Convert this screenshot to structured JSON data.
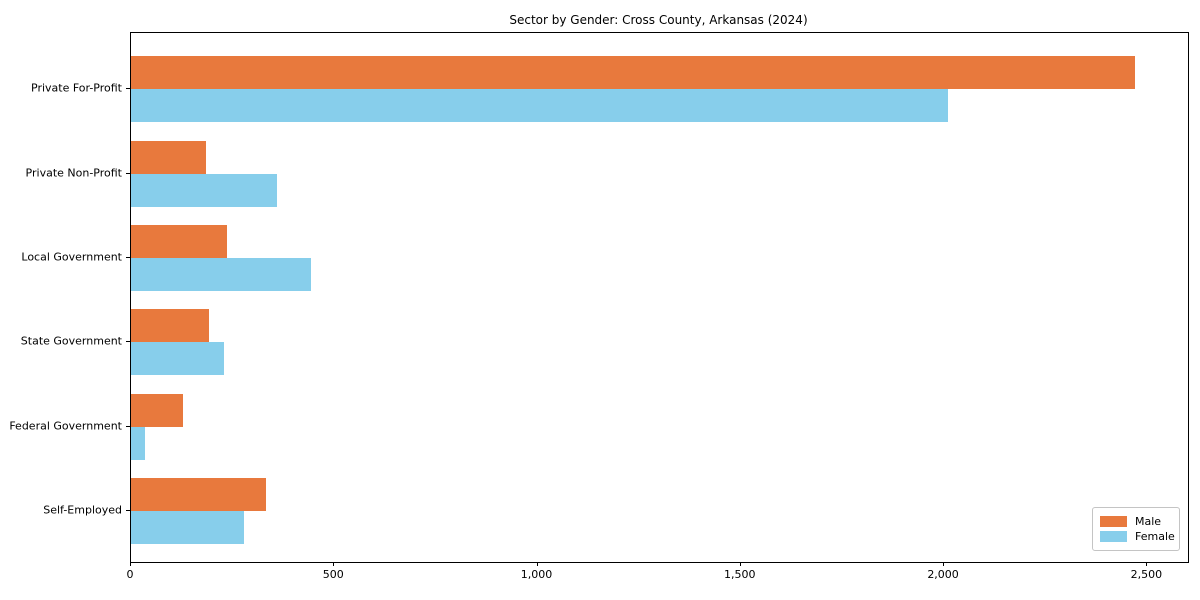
{
  "chart_data": {
    "type": "bar",
    "orientation": "horizontal",
    "title": "Sector by Gender: Cross County, Arkansas (2024)",
    "categories": [
      "Private For-Profit",
      "Private Non-Profit",
      "Local Government",
      "State Government",
      "Federal Government",
      "Self-Employed"
    ],
    "series": [
      {
        "name": "Male",
        "color": "#e8793d",
        "values": [
          2470,
          185,
          235,
          191,
          127,
          332
        ]
      },
      {
        "name": "Female",
        "color": "#87ceeb",
        "values": [
          2010,
          358,
          443,
          229,
          35,
          279
        ]
      }
    ],
    "xlabel": "",
    "ylabel": "",
    "xlim": [
      0,
      2600
    ],
    "xticks": [
      0,
      500,
      1000,
      1500,
      2000,
      2500
    ],
    "xtick_labels": [
      "0",
      "500",
      "1,000",
      "1,500",
      "2,000",
      "2,500"
    ],
    "legend_position": "lower right",
    "grid": false,
    "background_color": "#ffffff",
    "axis_color": "#000000"
  }
}
